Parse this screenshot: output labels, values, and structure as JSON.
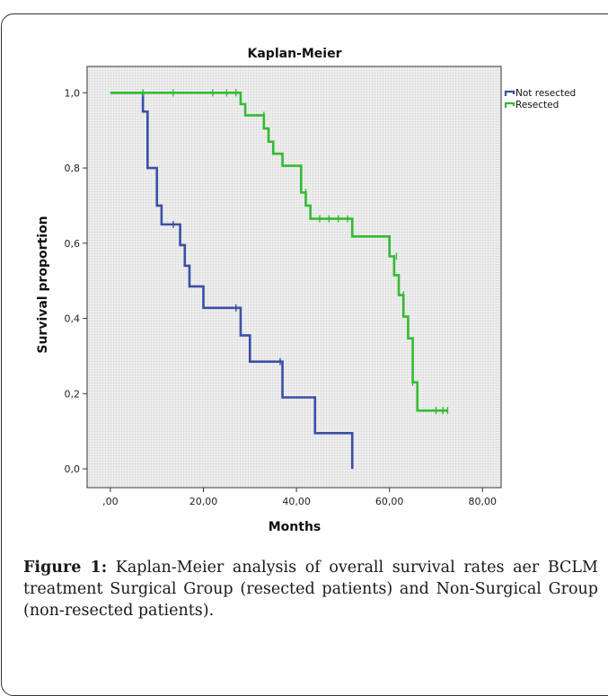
{
  "figure": {
    "label": "Figure 1:",
    "text": "Kaplan-Meier analysis of overall survival rates aer BCLM treatment Surgical Group (resected patients) and Non-Surgical Group (non-resected patients)."
  },
  "colors": {
    "not_resected": "#3a4fa8",
    "resected": "#33bb33",
    "plot_bg": "#e6e6e6"
  },
  "chart_data": {
    "type": "line",
    "title": "Kaplan-Meier",
    "xlabel": "Months",
    "ylabel": "Survival proportion",
    "xlim": [
      -5,
      84
    ],
    "ylim": [
      -0.05,
      1.07
    ],
    "xticks": [
      0,
      20,
      40,
      60,
      80
    ],
    "xtick_labels": [
      ",00",
      "20,00",
      "40,00",
      "60,00",
      "80,00"
    ],
    "yticks": [
      0,
      0.2,
      0.4,
      0.6,
      0.8,
      1.0
    ],
    "ytick_labels": [
      "0,0",
      "0,2",
      "0,4",
      "0,6",
      "0,8",
      "1,0"
    ],
    "grid": false,
    "legend": "top-right",
    "series": [
      {
        "name": "Not resected",
        "color": "#3a4fa8",
        "steps": [
          [
            0,
            1.0
          ],
          [
            7,
            0.95
          ],
          [
            8,
            0.8
          ],
          [
            10,
            0.7
          ],
          [
            11,
            0.65
          ],
          [
            15,
            0.595
          ],
          [
            16,
            0.54
          ],
          [
            17,
            0.485
          ],
          [
            20,
            0.428
          ],
          [
            28,
            0.355
          ],
          [
            30,
            0.285
          ],
          [
            37,
            0.19
          ],
          [
            44,
            0.095
          ],
          [
            52,
            0.0
          ]
        ],
        "end_x": 52,
        "censored": [
          [
            13.5,
            0.65
          ],
          [
            27,
            0.428
          ],
          [
            36.5,
            0.285
          ]
        ]
      },
      {
        "name": "Resected",
        "color": "#33bb33",
        "steps": [
          [
            0,
            1.0
          ],
          [
            28,
            0.97
          ],
          [
            29,
            0.94
          ],
          [
            33,
            0.905
          ],
          [
            34,
            0.87
          ],
          [
            35,
            0.838
          ],
          [
            37,
            0.806
          ],
          [
            41,
            0.735
          ],
          [
            42,
            0.7
          ],
          [
            43,
            0.665
          ],
          [
            52,
            0.618
          ],
          [
            60,
            0.565
          ],
          [
            61,
            0.515
          ],
          [
            62,
            0.462
          ],
          [
            63,
            0.405
          ],
          [
            64,
            0.347
          ],
          [
            65,
            0.23
          ],
          [
            66,
            0.155
          ]
        ],
        "end_x": 72.5,
        "censored": [
          [
            7,
            1.0
          ],
          [
            13.5,
            1.0
          ],
          [
            22,
            1.0
          ],
          [
            25,
            1.0
          ],
          [
            27,
            1.0
          ],
          [
            33,
            0.94
          ],
          [
            42,
            0.735
          ],
          [
            45,
            0.665
          ],
          [
            47,
            0.665
          ],
          [
            49,
            0.665
          ],
          [
            51,
            0.665
          ],
          [
            61.5,
            0.565
          ],
          [
            63,
            0.462
          ],
          [
            65,
            0.23
          ],
          [
            70,
            0.155
          ],
          [
            71.5,
            0.155
          ],
          [
            72.5,
            0.155
          ]
        ]
      }
    ]
  }
}
